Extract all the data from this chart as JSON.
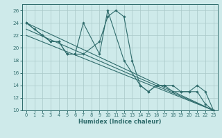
{
  "xlabel": "Humidex (Indice chaleur)",
  "background_color": "#ceeaea",
  "grid_color": "#aac8c8",
  "line_color": "#2e6b6b",
  "xlim": [
    -0.5,
    23.5
  ],
  "ylim": [
    10,
    27
  ],
  "xticks": [
    0,
    1,
    2,
    3,
    4,
    5,
    6,
    7,
    8,
    9,
    10,
    11,
    12,
    13,
    14,
    15,
    16,
    17,
    18,
    19,
    20,
    21,
    22,
    23
  ],
  "yticks": [
    10,
    12,
    14,
    16,
    18,
    20,
    22,
    24,
    26
  ],
  "series": [
    {
      "x": [
        0,
        1,
        2,
        3,
        4,
        5,
        6,
        7,
        9,
        10,
        11,
        12,
        13,
        14,
        15,
        16,
        17,
        18,
        19,
        20,
        21,
        22,
        23
      ],
      "y": [
        24,
        23,
        22,
        21,
        21,
        19,
        19,
        19,
        21,
        25,
        26,
        25,
        18,
        14,
        13,
        14,
        14,
        13,
        13,
        13,
        13,
        11,
        10
      ],
      "marker": true
    },
    {
      "x": [
        0,
        2,
        3,
        4,
        5,
        6,
        7,
        9,
        10,
        12,
        14,
        15,
        16,
        17,
        18,
        19,
        20,
        21,
        22,
        23
      ],
      "y": [
        24,
        22,
        21,
        21,
        19,
        19,
        24,
        19,
        26,
        18,
        14,
        13,
        14,
        14,
        14,
        13,
        13,
        14,
        13,
        10
      ],
      "marker": true
    },
    {
      "x": [
        0,
        23
      ],
      "y": [
        24,
        10
      ],
      "marker": false
    },
    {
      "x": [
        0,
        23
      ],
      "y": [
        23,
        10
      ],
      "marker": false
    },
    {
      "x": [
        0,
        23
      ],
      "y": [
        22,
        10
      ],
      "marker": false
    }
  ]
}
